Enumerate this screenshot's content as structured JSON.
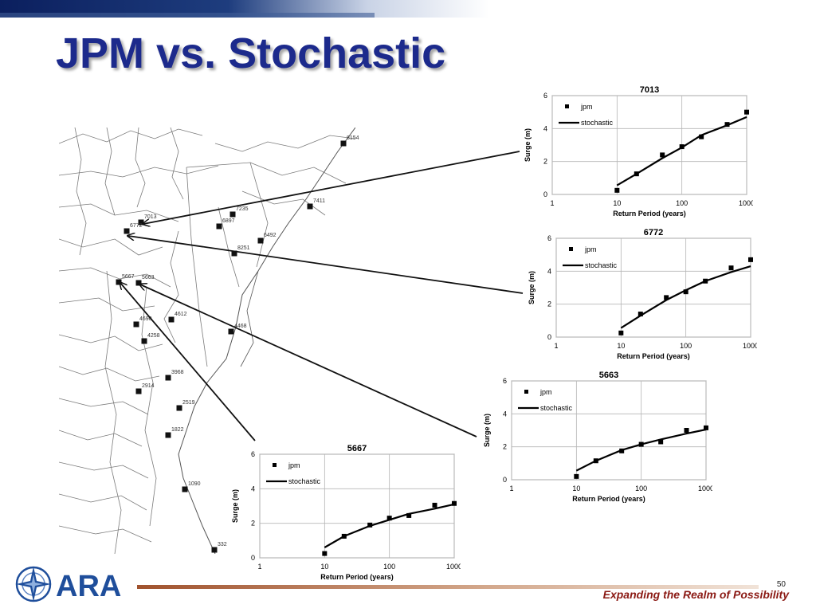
{
  "slide": {
    "title": "JPM vs. Stochastic",
    "page_number": "50",
    "tagline": "Expanding the Realm of Possibility",
    "logo_text": "ARA"
  },
  "colors": {
    "title": "#1c2a8c",
    "tagline": "#8b1a14",
    "logo_blue": "#1f4e9b",
    "footer_rule": "#a0522d"
  },
  "map": {
    "stations": [
      {
        "label": "8154"
      },
      {
        "label": "7411"
      },
      {
        "label": "7235"
      },
      {
        "label": "6897"
      },
      {
        "label": "6492"
      },
      {
        "label": "8251"
      },
      {
        "label": "7013"
      },
      {
        "label": "6772"
      },
      {
        "label": "5667"
      },
      {
        "label": "5663"
      },
      {
        "label": "4690"
      },
      {
        "label": "4612"
      },
      {
        "label": "4468"
      },
      {
        "label": "4258"
      },
      {
        "label": "3968"
      },
      {
        "label": "2914"
      },
      {
        "label": "2519"
      },
      {
        "label": "1822"
      },
      {
        "label": "1090"
      },
      {
        "label": "332"
      }
    ]
  },
  "chart_data": [
    {
      "type": "scatter",
      "title": "7013",
      "xlabel": "Return Period (years)",
      "ylabel": "Surge (m)",
      "xscale": "log",
      "xlim": [
        1,
        1000
      ],
      "ylim": [
        0,
        6
      ],
      "xticks": [
        "1",
        "10",
        "100",
        "1000"
      ],
      "yticks": [
        "0",
        "2",
        "4",
        "6"
      ],
      "grid": true,
      "legend_position": "top-left",
      "series": [
        {
          "name": "jpm",
          "kind": "markers",
          "x": [
            10,
            20,
            50,
            100,
            200,
            500,
            1000
          ],
          "y": [
            0.25,
            1.25,
            2.4,
            2.9,
            3.5,
            4.25,
            5.0
          ]
        },
        {
          "name": "stochastic",
          "kind": "line",
          "x": [
            10,
            20,
            50,
            100,
            200,
            500,
            1000
          ],
          "y": [
            0.55,
            1.25,
            2.2,
            2.85,
            3.6,
            4.2,
            4.7
          ]
        }
      ]
    },
    {
      "type": "scatter",
      "title": "6772",
      "xlabel": "Return Period (years)",
      "ylabel": "Surge (m)",
      "xscale": "log",
      "xlim": [
        1,
        1000
      ],
      "ylim": [
        0,
        6
      ],
      "xticks": [
        "1",
        "10",
        "100",
        "1000"
      ],
      "yticks": [
        "0",
        "2",
        "4",
        "6"
      ],
      "grid": true,
      "legend_position": "top-left",
      "series": [
        {
          "name": "jpm",
          "kind": "markers",
          "x": [
            10,
            20,
            50,
            100,
            200,
            500,
            1000
          ],
          "y": [
            0.25,
            1.4,
            2.4,
            2.75,
            3.4,
            4.2,
            4.7
          ]
        },
        {
          "name": "stochastic",
          "kind": "line",
          "x": [
            10,
            20,
            50,
            100,
            200,
            500,
            1000
          ],
          "y": [
            0.55,
            1.3,
            2.25,
            2.85,
            3.4,
            3.95,
            4.3
          ]
        }
      ]
    },
    {
      "type": "scatter",
      "title": "5663",
      "xlabel": "Return Period (years)",
      "ylabel": "Surge (m)",
      "xscale": "log",
      "xlim": [
        1,
        1000
      ],
      "ylim": [
        0,
        6
      ],
      "xticks": [
        "1",
        "10",
        "100",
        "1000"
      ],
      "yticks": [
        "0",
        "2",
        "4",
        "6"
      ],
      "grid": true,
      "legend_position": "top-left",
      "series": [
        {
          "name": "jpm",
          "kind": "markers",
          "x": [
            10,
            20,
            50,
            100,
            200,
            500,
            1000
          ],
          "y": [
            0.2,
            1.15,
            1.75,
            2.15,
            2.3,
            3.0,
            3.15
          ]
        },
        {
          "name": "stochastic",
          "kind": "line",
          "x": [
            10,
            20,
            50,
            100,
            200,
            500,
            1000
          ],
          "y": [
            0.55,
            1.15,
            1.8,
            2.15,
            2.45,
            2.8,
            3.05
          ]
        }
      ]
    },
    {
      "type": "scatter",
      "title": "5667",
      "xlabel": "Return Period (years)",
      "ylabel": "Surge (m)",
      "xscale": "log",
      "xlim": [
        1,
        1000
      ],
      "ylim": [
        0,
        6
      ],
      "xticks": [
        "1",
        "10",
        "100",
        "1000"
      ],
      "yticks": [
        "0",
        "2",
        "4",
        "6"
      ],
      "grid": true,
      "legend_position": "top-left",
      "series": [
        {
          "name": "jpm",
          "kind": "markers",
          "x": [
            10,
            20,
            50,
            100,
            200,
            500,
            1000
          ],
          "y": [
            0.25,
            1.25,
            1.9,
            2.3,
            2.45,
            3.05,
            3.15
          ]
        },
        {
          "name": "stochastic",
          "kind": "line",
          "x": [
            10,
            20,
            50,
            100,
            200,
            500,
            1000
          ],
          "y": [
            0.6,
            1.25,
            1.85,
            2.2,
            2.55,
            2.85,
            3.1
          ]
        }
      ]
    }
  ]
}
